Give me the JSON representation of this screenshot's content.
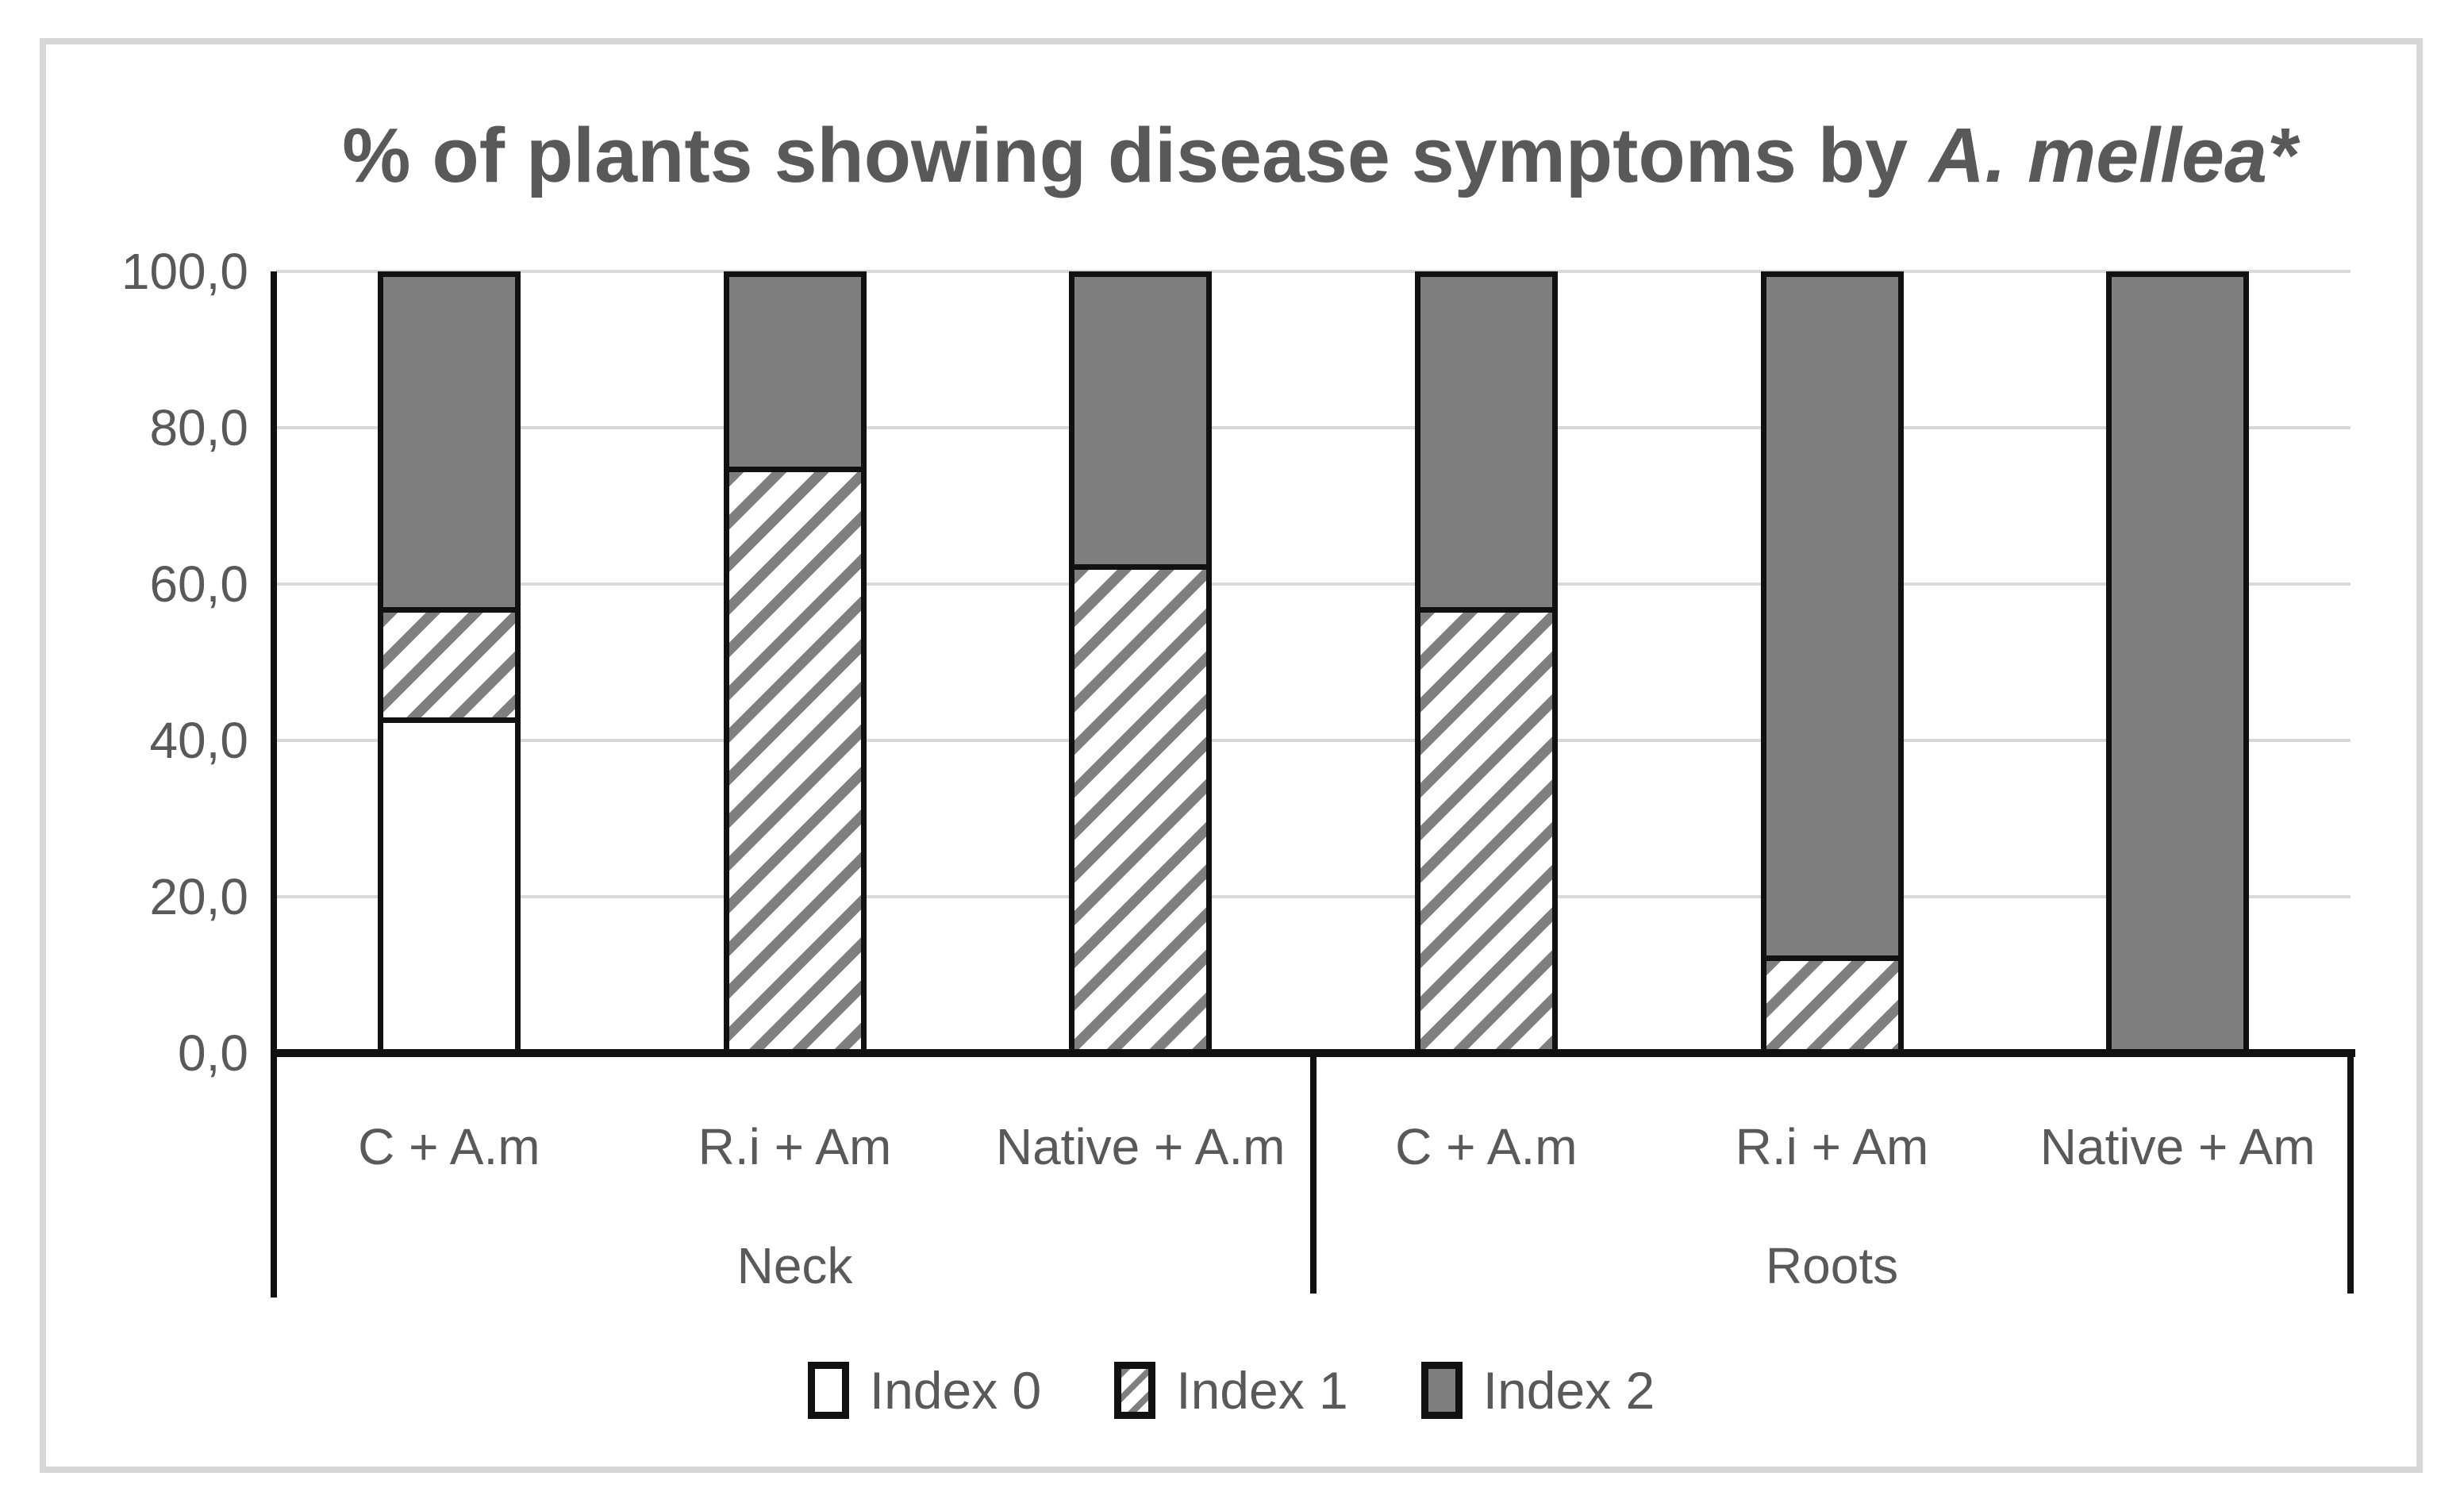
{
  "title": {
    "prefix": "% of plants showing disease symptoms by ",
    "italic": "A. mellea*"
  },
  "chart_data": {
    "type": "bar",
    "stacked": true,
    "title": "% of plants showing disease symptoms by A. mellea*",
    "ylim": [
      0,
      100
    ],
    "y_ticks": [
      "100,0",
      "80,0",
      "60,0",
      "40,0",
      "20,0",
      "0,0"
    ],
    "grid": true,
    "legend_position": "bottom",
    "groups": [
      {
        "label": "Neck",
        "categories": [
          "C + A.m",
          "R.i + Am",
          "Native + A.m"
        ]
      },
      {
        "label": "Roots",
        "categories": [
          "C + A.m",
          "R.i + Am",
          "Native + Am"
        ]
      }
    ],
    "categories": [
      "C + A.m",
      "R.i + Am",
      "Native + A.m",
      "C + A.m",
      "R.i + Am",
      "Native + Am"
    ],
    "series": [
      {
        "name": "Index 0",
        "pattern": "white",
        "values": [
          42.9,
          0,
          0,
          0,
          0,
          0
        ]
      },
      {
        "name": "Index 1",
        "pattern": "hatch",
        "values": [
          14.2,
          75.0,
          62.5,
          57.1,
          12.5,
          0
        ]
      },
      {
        "name": "Index 2",
        "pattern": "gray",
        "values": [
          42.9,
          25.0,
          37.5,
          42.9,
          87.5,
          100.0
        ]
      }
    ],
    "colors": {
      "bar_gray": "#7f7f7f",
      "hatch_stripe": "#7f7f7f",
      "bar_border": "#111111",
      "gridline": "#d9d9d9",
      "text": "#595959",
      "frame_border": "#d7d7d7"
    },
    "legend": [
      "Index 0",
      "Index 1",
      "Index 2"
    ]
  }
}
